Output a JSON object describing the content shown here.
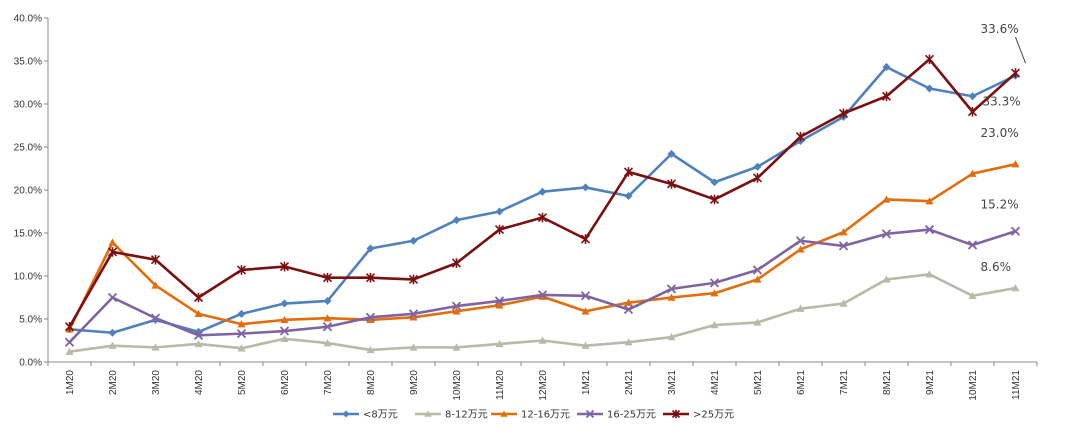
{
  "chart_data": {
    "type": "line",
    "title": "",
    "xlabel": "",
    "ylabel": "",
    "x": [
      "1M20",
      "2M20",
      "3M20",
      "4M20",
      "5M20",
      "6M20",
      "7M20",
      "8M20",
      "9M20",
      "10M20",
      "11M20",
      "12M20",
      "1M21",
      "2M21",
      "3M21",
      "4M21",
      "5M21",
      "6M21",
      "7M21",
      "8M21",
      "9M21",
      "10M21",
      "11M21"
    ],
    "ylim": [
      0,
      40
    ],
    "yticks": [
      "0.0%",
      "5.0%",
      "10.0%",
      "15.0%",
      "20.0%",
      "25.0%",
      "30.0%",
      "35.0%",
      "40.0%"
    ],
    "grid": false,
    "legend_position": "bottom",
    "series": [
      {
        "name": "<8万元",
        "color": "#4f81bd",
        "marker": "diamond",
        "values": [
          3.8,
          3.4,
          4.9,
          3.5,
          5.6,
          6.8,
          7.1,
          13.2,
          14.1,
          16.5,
          17.5,
          19.8,
          20.3,
          19.3,
          24.2,
          20.9,
          22.7,
          25.7,
          28.5,
          34.3,
          31.8,
          30.9,
          33.3
        ]
      },
      {
        "name": "8-12万元",
        "color": "#b8b9a9",
        "marker": "triangle",
        "values": [
          1.2,
          1.9,
          1.7,
          2.1,
          1.6,
          2.7,
          2.2,
          1.4,
          1.7,
          1.7,
          2.1,
          2.5,
          1.9,
          2.3,
          2.9,
          4.3,
          4.6,
          6.2,
          6.8,
          9.6,
          10.2,
          7.7,
          8.6
        ]
      },
      {
        "name": "12-16万元",
        "color": "#e46c0a",
        "marker": "triangle",
        "values": [
          3.8,
          13.9,
          8.9,
          5.6,
          4.4,
          4.9,
          5.1,
          4.9,
          5.2,
          5.9,
          6.6,
          7.6,
          5.9,
          6.9,
          7.5,
          8.0,
          9.6,
          13.1,
          15.1,
          18.9,
          18.7,
          21.9,
          23.0
        ]
      },
      {
        "name": "16-25万元",
        "color": "#8064a2",
        "marker": "x",
        "values": [
          2.3,
          7.5,
          5.1,
          3.1,
          3.3,
          3.6,
          4.1,
          5.2,
          5.6,
          6.5,
          7.1,
          7.8,
          7.7,
          6.1,
          8.5,
          9.2,
          10.7,
          14.1,
          13.5,
          14.9,
          15.4,
          13.6,
          15.2
        ]
      },
      {
        "name": ">25万元",
        "color": "#7b1010",
        "marker": "star",
        "values": [
          4.1,
          12.8,
          11.9,
          7.5,
          10.7,
          11.1,
          9.8,
          9.8,
          9.6,
          11.5,
          15.4,
          16.8,
          14.3,
          22.1,
          20.7,
          18.9,
          21.4,
          26.2,
          28.9,
          30.9,
          35.2,
          29.1,
          33.6
        ]
      }
    ],
    "annotations": [
      {
        "text": "33.6%",
        "series_index": 4
      },
      {
        "text": "33.3%",
        "series_index": 0
      },
      {
        "text": "23.0%",
        "series_index": 2
      },
      {
        "text": "15.2%",
        "series_index": 3
      },
      {
        "text": "8.6%",
        "series_index": 1
      }
    ]
  }
}
